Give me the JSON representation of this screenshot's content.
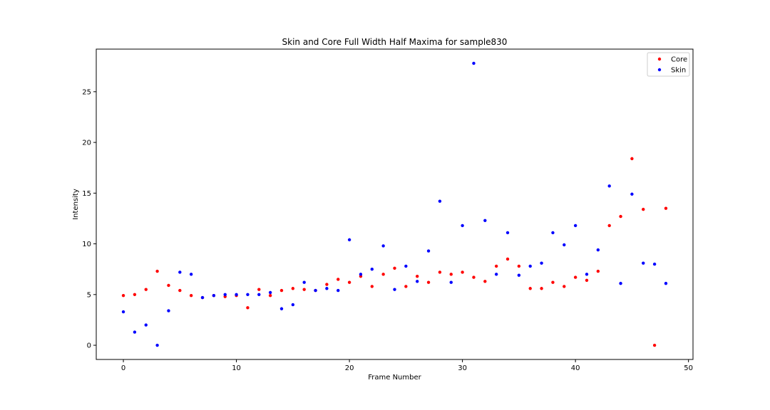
{
  "chart_data": {
    "type": "scatter",
    "title": "Skin and Core Full Width Half Maxima for sample830",
    "xlabel": "Frame Number",
    "ylabel": "Intensity",
    "xlim": [
      -2.4,
      50.4
    ],
    "ylim": [
      -1.4,
      29.2
    ],
    "xticks": [
      0,
      10,
      20,
      30,
      40,
      50
    ],
    "yticks": [
      0,
      5,
      10,
      15,
      20,
      25
    ],
    "grid": false,
    "legend_position": "top-right",
    "series": [
      {
        "name": "Core",
        "color": "#ff0000",
        "x": [
          0,
          1,
          2,
          3,
          4,
          5,
          6,
          7,
          8,
          9,
          10,
          11,
          12,
          13,
          14,
          15,
          16,
          17,
          18,
          19,
          20,
          21,
          22,
          23,
          24,
          25,
          26,
          27,
          28,
          29,
          30,
          31,
          32,
          33,
          34,
          35,
          36,
          37,
          38,
          39,
          40,
          41,
          42,
          43,
          44,
          45,
          46,
          47,
          48
        ],
        "y": [
          4.9,
          5.0,
          5.5,
          7.3,
          5.9,
          5.4,
          4.9,
          4.7,
          4.9,
          4.8,
          4.9,
          3.7,
          5.5,
          4.9,
          5.4,
          5.6,
          5.5,
          5.4,
          6.0,
          6.5,
          6.2,
          6.8,
          5.8,
          7.0,
          7.6,
          5.8,
          6.8,
          6.2,
          7.2,
          7.0,
          7.2,
          6.7,
          6.3,
          7.8,
          8.5,
          7.8,
          5.6,
          5.6,
          6.2,
          5.8,
          6.7,
          6.4,
          7.3,
          11.8,
          12.7,
          18.4,
          13.4,
          0.0,
          13.5
        ]
      },
      {
        "name": "Skin",
        "color": "#0000ff",
        "x": [
          0,
          1,
          2,
          3,
          4,
          5,
          6,
          7,
          8,
          9,
          10,
          11,
          12,
          13,
          14,
          15,
          16,
          17,
          18,
          19,
          20,
          21,
          22,
          23,
          24,
          25,
          26,
          27,
          28,
          29,
          30,
          31,
          32,
          33,
          34,
          35,
          36,
          37,
          38,
          39,
          40,
          41,
          42,
          43,
          44,
          45,
          46,
          47,
          48
        ],
        "y": [
          3.3,
          1.3,
          2.0,
          0.0,
          3.4,
          7.2,
          7.0,
          4.7,
          4.9,
          5.0,
          5.0,
          5.0,
          5.0,
          5.2,
          3.6,
          4.0,
          6.2,
          5.4,
          5.6,
          5.4,
          10.4,
          7.0,
          7.5,
          9.8,
          5.5,
          7.8,
          6.3,
          9.3,
          14.2,
          6.2,
          11.8,
          27.8,
          12.3,
          7.0,
          11.1,
          6.9,
          7.8,
          8.1,
          11.1,
          9.9,
          11.8,
          7.0,
          9.4,
          15.7,
          6.1,
          14.9,
          8.1,
          8.0,
          6.1
        ]
      }
    ]
  }
}
